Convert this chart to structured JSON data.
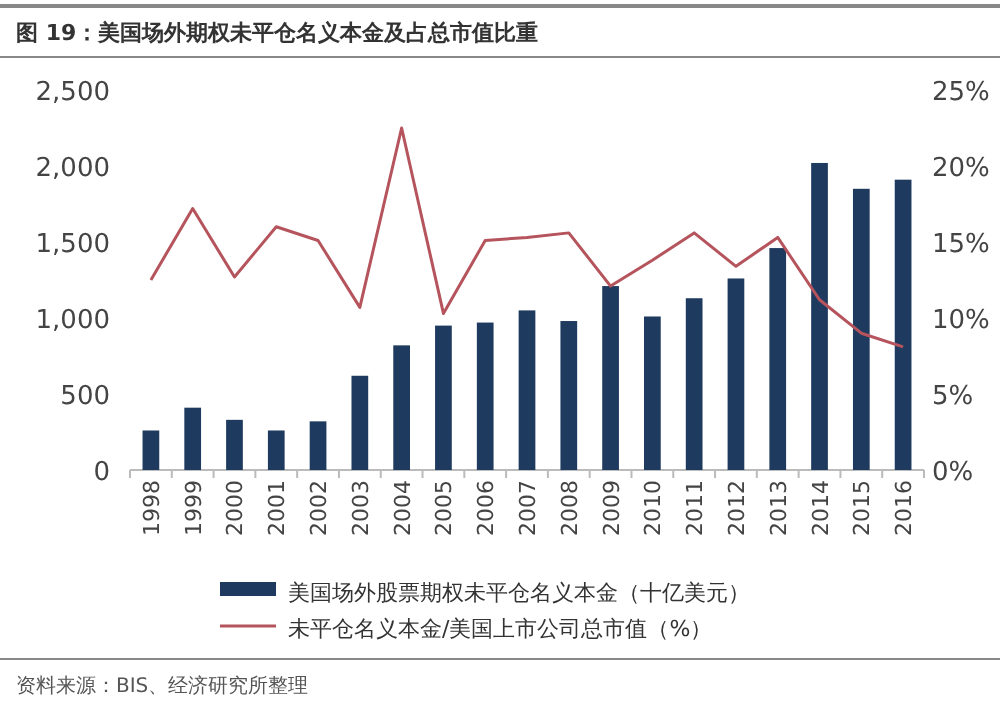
{
  "chart_data": {
    "type": "bar",
    "title": "图 19：美国场外期权未平仓名义本金及占总市值比重",
    "categories": [
      "1998",
      "1999",
      "2000",
      "2001",
      "2002",
      "2003",
      "2004",
      "2005",
      "2006",
      "2007",
      "2008",
      "2009",
      "2010",
      "2011",
      "2012",
      "2013",
      "2014",
      "2015",
      "2016"
    ],
    "series": [
      {
        "name": "美国场外股票期权未平仓名义本金（十亿美元）",
        "color": "#1f3a5f",
        "values": [
          260,
          410,
          330,
          260,
          320,
          620,
          820,
          950,
          970,
          1050,
          980,
          1210,
          1010,
          1130,
          1260,
          1460,
          2020,
          1850,
          1910
        ]
      },
      {
        "name": "未平仓名义本金/美国上市公司总市值（%）",
        "type": "line",
        "axis": "y2",
        "color": "#b5545c",
        "values": [
          12.5,
          17.2,
          12.7,
          16.0,
          15.1,
          10.7,
          22.5,
          10.3,
          15.1,
          15.3,
          15.6,
          12.1,
          13.8,
          15.6,
          13.4,
          15.3,
          11.2,
          9.0,
          8.1
        ]
      }
    ],
    "ylim": [
      0,
      2500
    ],
    "yticks": [
      0,
      500,
      {
        "value": 1000,
        "label": "1,000"
      },
      {
        "value": 1500,
        "label": "1,500"
      },
      {
        "value": 2000,
        "label": "2,000"
      },
      {
        "value": 2500,
        "label": "2,500"
      }
    ],
    "y2lim": [
      0,
      25
    ],
    "y2ticks": [
      {
        "value": 0,
        "label": "0%"
      },
      {
        "value": 5,
        "label": "5%"
      },
      {
        "value": 10,
        "label": "10%"
      },
      {
        "value": 15,
        "label": "15%"
      },
      {
        "value": 20,
        "label": "20%"
      },
      {
        "value": 25,
        "label": "25%"
      }
    ],
    "legend": "bottom",
    "annotations": [
      "资料来源：BIS、经济研究所整理"
    ]
  }
}
